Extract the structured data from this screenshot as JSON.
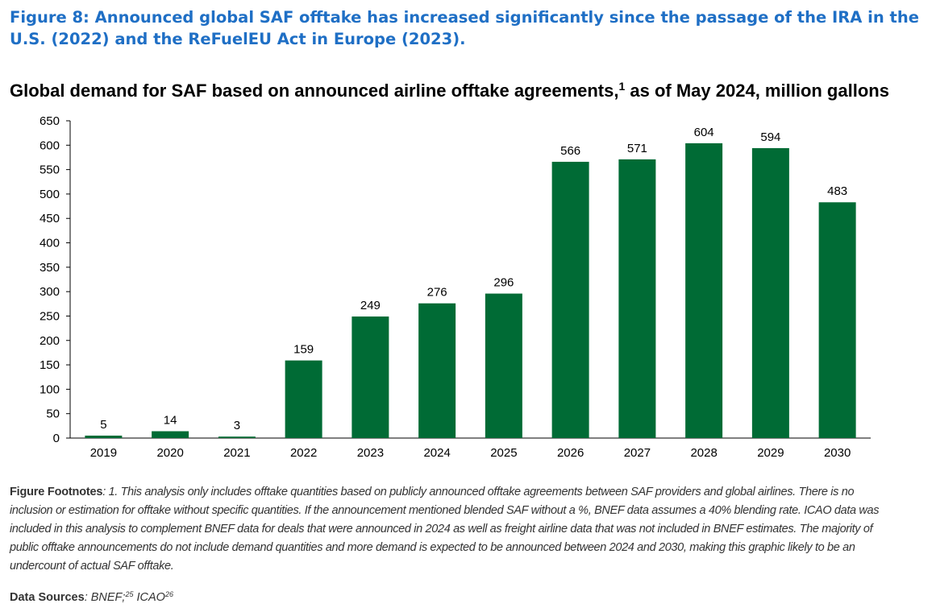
{
  "figure": {
    "title": "Figure 8: Announced global SAF offtake has increased significantly since the passage of the IRA in the U.S. (2022) and the ReFuelEU Act in Europe (2023)."
  },
  "chart_data": {
    "type": "bar",
    "title_bold": "Global demand for SAF based on announced airline offtake agreements,",
    "title_sup": "1",
    "title_rest": " as of May 2024, million gallons",
    "categories": [
      "2019",
      "2020",
      "2021",
      "2022",
      "2023",
      "2024",
      "2025",
      "2026",
      "2027",
      "2028",
      "2029",
      "2030"
    ],
    "values": [
      5,
      14,
      3,
      159,
      249,
      276,
      296,
      566,
      571,
      604,
      594,
      483
    ],
    "ylim": [
      0,
      650
    ],
    "yticks": [
      0,
      50,
      100,
      150,
      200,
      250,
      300,
      350,
      400,
      450,
      500,
      550,
      600,
      650
    ],
    "bar_color": "#006b35",
    "grid": false,
    "data_labels": true
  },
  "footnotes": {
    "label": "Figure Footnotes",
    "text": ": 1. This analysis only includes offtake quantities based on publicly announced offtake agreements between SAF providers and global airlines. There is no inclusion or estimation for offtake without specific quantities. If the announcement mentioned blended SAF without a %, BNEF data assumes a 40% blending rate. ICAO data was included in this analysis to complement BNEF data for deals that were announced in 2024 as well as freight airline data that was not included in BNEF estimates. The majority of public offtake announcements do not include demand quantities and more demand is expected to be announced between 2024 and 2030, making this graphic likely to be an undercount of actual SAF offtake."
  },
  "sources": {
    "label": "Data Sources",
    "text_a": ": BNEF;",
    "sup_a": "25",
    "text_b": " ICAO",
    "sup_b": "26"
  }
}
